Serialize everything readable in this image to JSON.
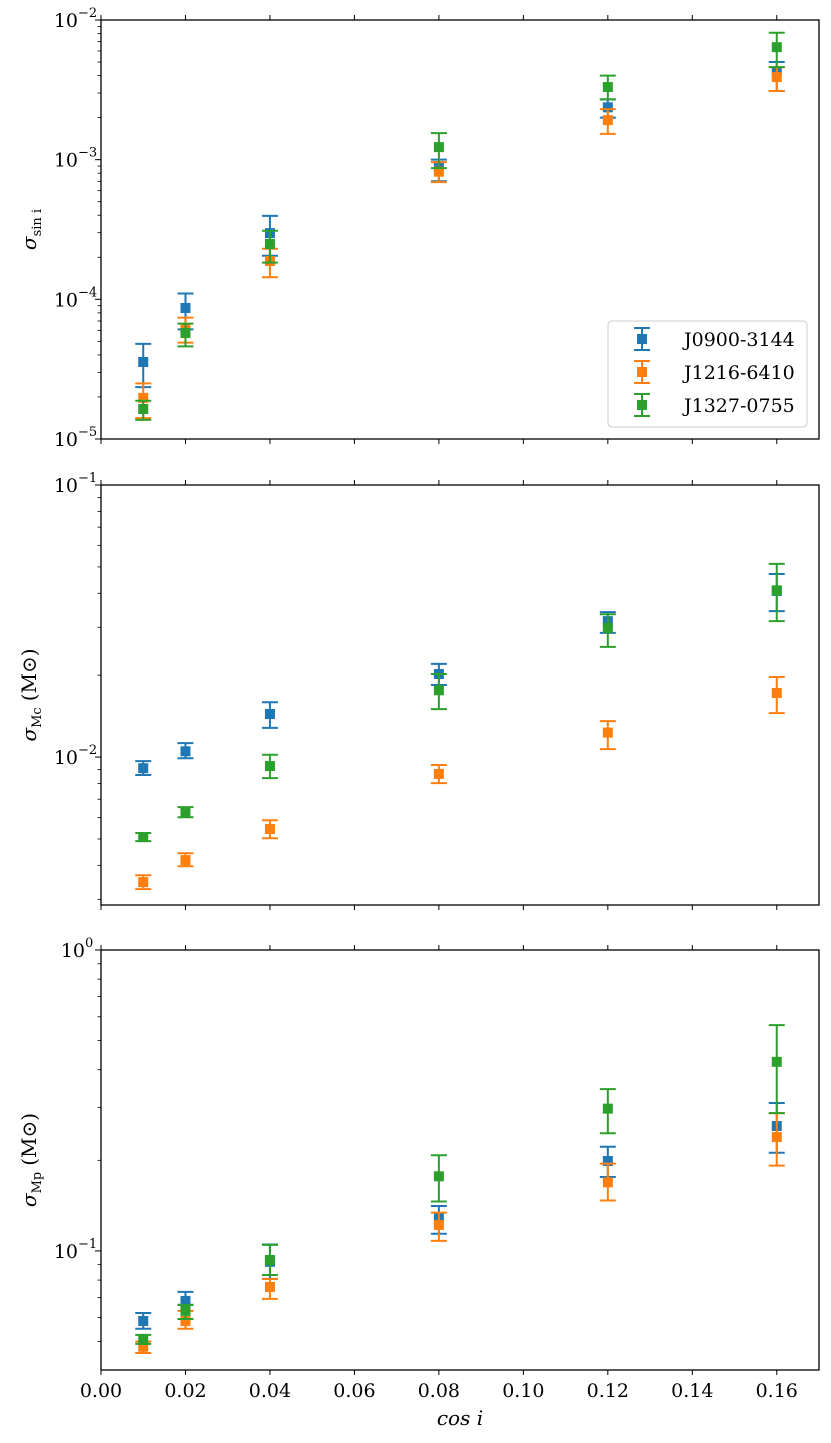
{
  "figure": {
    "description": "Uncertainty vs cos i for three pulsars"
  },
  "colors": {
    "J0900-3144": "#1f77b4",
    "J1216-6410": "#ff7f0e",
    "J1327-0755": "#2ca02c"
  },
  "chart_data": [
    {
      "type": "scatter",
      "panel": "top",
      "ylabel": "σ_sin i",
      "ylabel_main": "σ",
      "ylabel_sub": "sin i",
      "ylabel_unit": "",
      "xlabel": "",
      "yscale": "log",
      "xlim": [
        0.0,
        0.17
      ],
      "ylim": [
        1e-05,
        0.01
      ],
      "yticks": [
        1e-05,
        0.0001,
        0.001,
        0.01
      ],
      "ytick_labels": [
        {
          "base": "10",
          "exp": "−5"
        },
        {
          "base": "10",
          "exp": "−4"
        },
        {
          "base": "10",
          "exp": "−3"
        },
        {
          "base": "10",
          "exp": "−2"
        }
      ],
      "legend": {
        "placement": "lower-right",
        "entries": [
          "J0900-3144",
          "J1216-6410",
          "J1327-0755"
        ]
      },
      "x": [
        0.01,
        0.02,
        0.04,
        0.08,
        0.12,
        0.16
      ],
      "series": [
        {
          "name": "J0900-3144",
          "values": [
            3.56e-05,
            8.67e-05,
            0.000298,
            0.0009,
            0.00237,
            0.00425
          ],
          "err_low": [
            2.35e-05,
            6.1e-05,
            0.000205,
            0.0007,
            0.002,
            0.0031
          ],
          "err_high": [
            4.8e-05,
            0.00011,
            0.000396,
            0.001,
            0.0027,
            0.005
          ]
        },
        {
          "name": "J1216-6410",
          "values": [
            1.97e-05,
            6.1e-05,
            0.000188,
            0.00082,
            0.00192,
            0.0039
          ],
          "err_low": [
            1.41e-05,
            4.9e-05,
            0.000144,
            0.00069,
            0.00153,
            0.0031
          ],
          "err_high": [
            2.5e-05,
            7.4e-05,
            0.00023,
            0.00096,
            0.0023,
            0.0046
          ]
        },
        {
          "name": "J1327-0755",
          "values": [
            1.64e-05,
            5.74e-05,
            0.000249,
            0.00123,
            0.00331,
            0.00639
          ],
          "err_low": [
            1.37e-05,
            4.6e-05,
            0.000183,
            0.00087,
            0.0027,
            0.0046
          ],
          "err_high": [
            1.88e-05,
            6.7e-05,
            0.00031,
            0.00155,
            0.004,
            0.0081
          ]
        }
      ]
    },
    {
      "type": "scatter",
      "panel": "middle",
      "ylabel": "σ_Mc (M⊙)",
      "ylabel_main": "σ",
      "ylabel_sub": "Mc",
      "ylabel_unit": "(M⊙)",
      "xlabel": "",
      "yscale": "log",
      "xlim": [
        0.0,
        0.17
      ],
      "ylim": [
        0.00286,
        0.1
      ],
      "yticks": [
        0.01,
        0.1
      ],
      "ytick_labels": [
        {
          "base": "10",
          "exp": "−2"
        },
        {
          "base": "10",
          "exp": "−1"
        }
      ],
      "x": [
        0.01,
        0.02,
        0.04,
        0.08,
        0.12,
        0.16
      ],
      "series": [
        {
          "name": "J0900-3144",
          "values": [
            0.0091,
            0.0105,
            0.0144,
            0.0202,
            0.0316,
            0.0408
          ],
          "err_low": [
            0.00859,
            0.0099,
            0.0128,
            0.0184,
            0.0286,
            0.0344
          ],
          "err_high": [
            0.00966,
            0.01125,
            0.0159,
            0.022,
            0.0341,
            0.0471
          ]
        },
        {
          "name": "J1216-6410",
          "values": [
            0.00347,
            0.00418,
            0.00544,
            0.00867,
            0.0123,
            0.0172
          ],
          "err_low": [
            0.00327,
            0.00397,
            0.00503,
            0.00802,
            0.0107,
            0.0145
          ],
          "err_high": [
            0.00368,
            0.00443,
            0.00586,
            0.00935,
            0.01355,
            0.0197
          ]
        },
        {
          "name": "J1327-0755",
          "values": [
            0.00508,
            0.00628,
            0.00927,
            0.0176,
            0.0298,
            0.041
          ],
          "err_low": [
            0.00491,
            0.00601,
            0.00837,
            0.015,
            0.0254,
            0.0316
          ],
          "err_high": [
            0.00526,
            0.00655,
            0.0102,
            0.0202,
            0.0335,
            0.0513
          ]
        }
      ]
    },
    {
      "type": "scatter",
      "panel": "bottom",
      "ylabel": "σ_Mp (M⊙)",
      "ylabel_main": "σ",
      "ylabel_sub": "Mp",
      "ylabel_unit": "(M⊙)",
      "xlabel": "cos i",
      "yscale": "log",
      "xlim": [
        0.0,
        0.17
      ],
      "ylim": [
        0.0402,
        1.0
      ],
      "yticks": [
        0.1,
        1.0
      ],
      "ytick_labels": [
        {
          "base": "10",
          "exp": "−1"
        },
        {
          "base": "10",
          "exp": "0"
        }
      ],
      "xticks": [
        0.0,
        0.02,
        0.04,
        0.06,
        0.08,
        0.1,
        0.12,
        0.14,
        0.16
      ],
      "xtick_labels": [
        "0.00",
        "0.02",
        "0.04",
        "0.06",
        "0.08",
        "0.10",
        "0.12",
        "0.14",
        "0.16"
      ],
      "x": [
        0.01,
        0.02,
        0.04,
        0.08,
        0.12,
        0.16
      ],
      "series": [
        {
          "name": "J0900-3144",
          "values": [
            0.0585,
            0.0682,
            0.092,
            0.129,
            0.199,
            0.26
          ],
          "err_low": [
            0.0551,
            0.0662,
            0.0807,
            0.114,
            0.176,
            0.212
          ],
          "err_high": [
            0.0622,
            0.0731,
            0.105,
            0.141,
            0.222,
            0.31
          ]
        },
        {
          "name": "J1216-6410",
          "values": [
            0.048,
            0.0585,
            0.0759,
            0.122,
            0.169,
            0.239
          ],
          "err_low": [
            0.0458,
            0.0551,
            0.0693,
            0.108,
            0.147,
            0.192
          ],
          "err_high": [
            0.05,
            0.0632,
            0.0807,
            0.134,
            0.195,
            0.287
          ]
        },
        {
          "name": "J1327-0755",
          "values": [
            0.0506,
            0.0632,
            0.0933,
            0.177,
            0.297,
            0.425
          ],
          "err_low": [
            0.0491,
            0.0594,
            0.0832,
            0.146,
            0.246,
            0.287
          ],
          "err_high": [
            0.0526,
            0.0662,
            0.1047,
            0.208,
            0.345,
            0.563
          ]
        }
      ]
    }
  ]
}
